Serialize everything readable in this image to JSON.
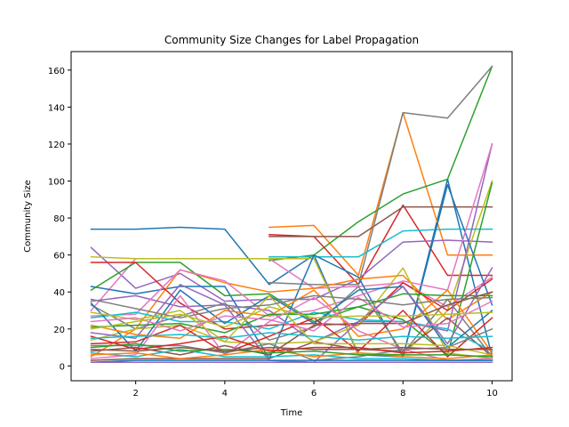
{
  "chart_data": {
    "type": "line",
    "title": "Community Size Changes for Label Propagation",
    "xlabel": "Time",
    "ylabel": "Community Size",
    "xlim": [
      0.55,
      10.45
    ],
    "ylim": [
      -8.0,
      170.0
    ],
    "xticks": [
      2,
      4,
      6,
      8,
      10
    ],
    "yticks": [
      0,
      20,
      40,
      60,
      80,
      100,
      120,
      140,
      160
    ],
    "grid": false,
    "legend": "none",
    "palette": [
      "#1f77b4",
      "#ff7f0e",
      "#2ca02c",
      "#d62728",
      "#9467bd",
      "#8c564b",
      "#e377c2",
      "#7f7f7f",
      "#bcbd22",
      "#17becf"
    ],
    "series": [
      {
        "x": [
          1,
          2,
          3,
          4,
          5,
          6,
          7,
          8,
          9,
          10
        ],
        "values": [
          74,
          74,
          75,
          74,
          44,
          60,
          6,
          5,
          101,
          5
        ]
      },
      {
        "x": [
          5,
          6,
          7,
          8,
          9,
          10
        ],
        "values": [
          75,
          76,
          49,
          137,
          60,
          60
        ]
      },
      {
        "x": [
          5,
          6,
          7,
          8,
          9,
          10
        ],
        "values": [
          57,
          60,
          78,
          93,
          101,
          162
        ]
      },
      {
        "x": [
          5,
          6,
          7,
          8,
          9,
          10
        ],
        "values": [
          71,
          70,
          44,
          87,
          49,
          49
        ]
      },
      {
        "x": [
          1,
          2,
          3,
          4,
          5,
          6,
          7,
          8,
          9,
          10
        ],
        "values": [
          64,
          42,
          50,
          35,
          36,
          36,
          47,
          67,
          68,
          67
        ]
      },
      {
        "x": [
          5,
          6,
          7,
          8,
          9,
          10
        ],
        "values": [
          70,
          70,
          70,
          86,
          86,
          86
        ]
      },
      {
        "x": [
          1,
          2,
          3,
          4,
          5,
          6,
          7,
          8,
          9,
          10
        ],
        "values": [
          30,
          58,
          58,
          58,
          58,
          42,
          43,
          45,
          32,
          48
        ]
      },
      {
        "x": [
          5,
          6,
          7,
          8,
          9,
          10
        ],
        "values": [
          45,
          44,
          44,
          137,
          134,
          162
        ]
      },
      {
        "x": [
          1,
          2,
          3,
          4,
          5,
          6,
          7,
          8,
          9,
          10
        ],
        "values": [
          59,
          58,
          58,
          58,
          58,
          58,
          7,
          6,
          30,
          100
        ]
      },
      {
        "x": [
          5,
          6,
          7,
          8,
          9,
          10
        ],
        "values": [
          59,
          59,
          59,
          73,
          74,
          74
        ]
      },
      {
        "x": [
          1,
          2,
          3,
          4,
          5,
          6,
          7,
          8,
          9,
          10
        ],
        "values": [
          43,
          39,
          43,
          43,
          4,
          60,
          48,
          5,
          98,
          33
        ]
      },
      {
        "x": [
          1,
          2,
          3,
          4,
          5,
          6,
          7,
          8,
          9,
          10
        ],
        "values": [
          5,
          20,
          52,
          45,
          40,
          42,
          47,
          49,
          25,
          40
        ]
      },
      {
        "x": [
          1,
          2,
          3,
          4,
          5,
          6,
          7,
          8,
          9,
          10
        ],
        "values": [
          41,
          56,
          56,
          38,
          39,
          24,
          32,
          25,
          6,
          99
        ]
      },
      {
        "x": [
          1,
          2,
          3,
          4,
          5,
          6,
          7,
          8,
          9,
          10
        ],
        "values": [
          56,
          56,
          34,
          20,
          22,
          23,
          22,
          45,
          30,
          47
        ]
      },
      {
        "x": [
          1,
          2,
          3,
          4,
          5,
          6,
          7,
          8,
          9,
          10
        ],
        "values": [
          35,
          38,
          32,
          33,
          30,
          13,
          24,
          24,
          19,
          120
        ]
      },
      {
        "x": [
          1,
          2,
          3,
          4,
          5,
          6,
          7,
          8,
          9,
          10
        ],
        "values": [
          3,
          4,
          4,
          4,
          4,
          13,
          9,
          8,
          26,
          5
        ]
      },
      {
        "x": [
          1,
          2,
          3,
          4,
          5,
          6,
          7,
          8,
          9,
          10
        ],
        "values": [
          27,
          28,
          52,
          46,
          27,
          30,
          38,
          46,
          41,
          120
        ]
      },
      {
        "x": [
          1,
          2,
          3,
          4,
          5,
          6,
          7,
          8,
          9,
          10
        ],
        "values": [
          33,
          20,
          27,
          34,
          14,
          21,
          43,
          7,
          36,
          5
        ]
      },
      {
        "x": [
          1,
          2,
          3,
          4,
          5,
          6,
          7,
          8,
          9,
          10
        ],
        "values": [
          14,
          20,
          22,
          13,
          12,
          13,
          22,
          53,
          7,
          4
        ]
      },
      {
        "x": [
          1,
          2,
          3,
          4,
          5,
          6,
          7,
          8,
          9,
          10
        ],
        "values": [
          26,
          29,
          24,
          24,
          20,
          29,
          25,
          24,
          20,
          8
        ]
      },
      {
        "x": [
          1,
          2,
          3,
          4,
          5,
          6,
          7,
          8,
          9,
          10
        ],
        "values": [
          34,
          8,
          41,
          23,
          38,
          23,
          41,
          43,
          10,
          30
        ]
      },
      {
        "x": [
          1,
          2,
          3,
          4,
          5,
          6,
          7,
          8,
          9,
          10
        ],
        "values": [
          22,
          17,
          15,
          30,
          27,
          41,
          16,
          20,
          41,
          7
        ]
      },
      {
        "x": [
          1,
          2,
          3,
          4,
          5,
          6,
          7,
          8,
          9,
          10
        ],
        "values": [
          21,
          22,
          23,
          18,
          28,
          28,
          32,
          39,
          38,
          38
        ]
      },
      {
        "x": [
          1,
          2,
          3,
          4,
          5,
          6,
          7,
          8,
          9,
          10
        ],
        "values": [
          12,
          13,
          22,
          7,
          16,
          26,
          8,
          30,
          5,
          26
        ]
      },
      {
        "x": [
          1,
          2,
          3,
          4,
          5,
          6,
          7,
          8,
          9,
          10
        ],
        "values": [
          18,
          15,
          44,
          33,
          3,
          2,
          24,
          43,
          12,
          53
        ]
      },
      {
        "x": [
          1,
          2,
          3,
          4,
          5,
          6,
          7,
          8,
          9,
          10
        ],
        "values": [
          8,
          10,
          6,
          11,
          6,
          22,
          23,
          23,
          33,
          40
        ]
      },
      {
        "x": [
          1,
          2,
          3,
          4,
          5,
          6,
          7,
          8,
          9,
          10
        ],
        "values": [
          4,
          6,
          38,
          6,
          24,
          37,
          19,
          9,
          3,
          4
        ]
      },
      {
        "x": [
          1,
          2,
          3,
          4,
          5,
          6,
          7,
          8,
          9,
          10
        ],
        "values": [
          11,
          11,
          11,
          7,
          12,
          3,
          5,
          9,
          10,
          20
        ]
      },
      {
        "x": [
          1,
          2,
          3,
          4,
          5,
          6,
          7,
          8,
          9,
          10
        ],
        "values": [
          29,
          25,
          30,
          13,
          38,
          12,
          12,
          12,
          11,
          6
        ]
      },
      {
        "x": [
          1,
          2,
          3,
          4,
          5,
          6,
          7,
          8,
          9,
          10
        ],
        "values": [
          7,
          5,
          9,
          5,
          5,
          6,
          4,
          4,
          3,
          3
        ]
      },
      {
        "x": [
          1,
          2,
          3,
          4,
          5,
          6,
          7,
          8,
          9,
          10
        ],
        "values": [
          2,
          3,
          3,
          3,
          3,
          3,
          3,
          3,
          3,
          3
        ]
      },
      {
        "x": [
          1,
          2,
          3,
          4,
          5,
          6,
          7,
          8,
          9,
          10
        ],
        "values": [
          6,
          7,
          4,
          6,
          9,
          5,
          7,
          5,
          4,
          6
        ]
      },
      {
        "x": [
          1,
          2,
          3,
          4,
          5,
          6,
          7,
          8,
          9,
          10
        ],
        "values": [
          10,
          12,
          8,
          9,
          7,
          8,
          6,
          6,
          6,
          5
        ]
      },
      {
        "x": [
          1,
          2,
          3,
          4,
          5,
          6,
          7,
          8,
          9,
          10
        ],
        "values": [
          16,
          9,
          12,
          16,
          8,
          10,
          10,
          7,
          8,
          10
        ]
      },
      {
        "x": [
          1,
          2,
          3,
          4,
          5,
          6,
          7,
          8,
          9,
          10
        ],
        "values": [
          2,
          2,
          2,
          2,
          2,
          2,
          2,
          2,
          2,
          2
        ]
      },
      {
        "x": [
          1,
          2,
          3,
          4,
          5,
          6,
          7,
          8,
          9,
          10
        ],
        "values": [
          9,
          8,
          10,
          8,
          10,
          9,
          9,
          10,
          9,
          9
        ]
      },
      {
        "x": [
          1,
          2,
          3,
          4,
          5,
          6,
          7,
          8,
          9,
          10
        ],
        "values": [
          24,
          26,
          19,
          27,
          25,
          19,
          37,
          21,
          23,
          35
        ]
      },
      {
        "x": [
          1,
          2,
          3,
          4,
          5,
          6,
          7,
          8,
          9,
          10
        ],
        "values": [
          36,
          31,
          26,
          31,
          33,
          38,
          36,
          33,
          36,
          37
        ]
      },
      {
        "x": [
          1,
          2,
          3,
          4,
          5,
          6,
          7,
          8,
          9,
          10
        ],
        "values": [
          20,
          24,
          28,
          21,
          32,
          26,
          27,
          27,
          28,
          29
        ]
      },
      {
        "x": [
          1,
          2,
          3,
          4,
          5,
          6,
          7,
          8,
          9,
          10
        ],
        "values": [
          15,
          16,
          17,
          15,
          18,
          16,
          14,
          16,
          15,
          16
        ]
      }
    ]
  }
}
